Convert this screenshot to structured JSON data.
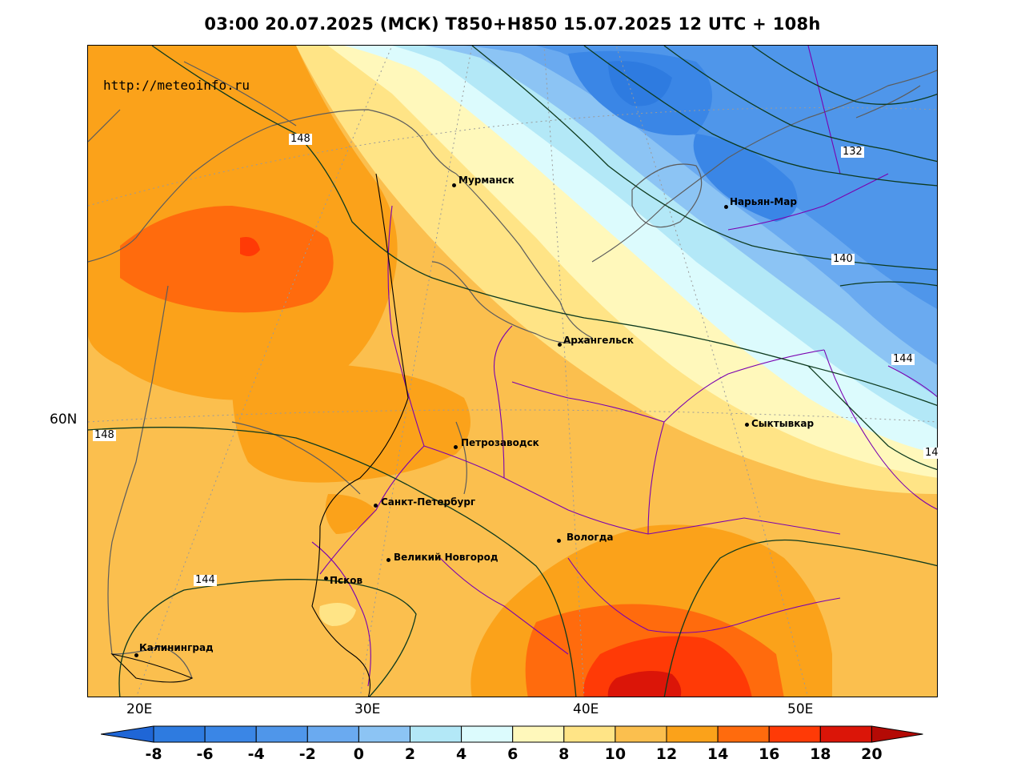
{
  "title": "03:00 20.07.2025 (МСК) T850+H850 15.07.2025 12 UTC + 108h",
  "website": "http://meteoinfo.ru",
  "lon_labels": [
    "20E",
    "30E",
    "40E",
    "50E"
  ],
  "lat_labels": [
    "60N"
  ],
  "cities": [
    {
      "name": "Мурманск"
    },
    {
      "name": "Нарьян-Мар"
    },
    {
      "name": "Архангельск"
    },
    {
      "name": "Сыктывкар"
    },
    {
      "name": "Петрозаводск"
    },
    {
      "name": "Санкт-Петербург"
    },
    {
      "name": "Вологда"
    },
    {
      "name": "Великий Новгород"
    },
    {
      "name": "Псков"
    },
    {
      "name": "Калининград"
    }
  ],
  "isohypse_labels": [
    "148",
    "132",
    "140",
    "144",
    "148",
    "14",
    "144"
  ],
  "colorbar": {
    "ticks": [
      "-8",
      "-6",
      "-4",
      "-2",
      "0",
      "2",
      "4",
      "6",
      "8",
      "10",
      "12",
      "14",
      "16",
      "18",
      "20"
    ],
    "colors": [
      "#2e7be0",
      "#3a86e6",
      "#4f96ea",
      "#6aaaf0",
      "#8cc4f4",
      "#b3e8f7",
      "#dcfbfd",
      "#fff8bb",
      "#ffe486",
      "#fbbf4e",
      "#fba21a",
      "#ff6b0d",
      "#ff3a06",
      "#db1508"
    ],
    "under_color": "#1f66d6",
    "over_color": "#b40a05"
  }
}
